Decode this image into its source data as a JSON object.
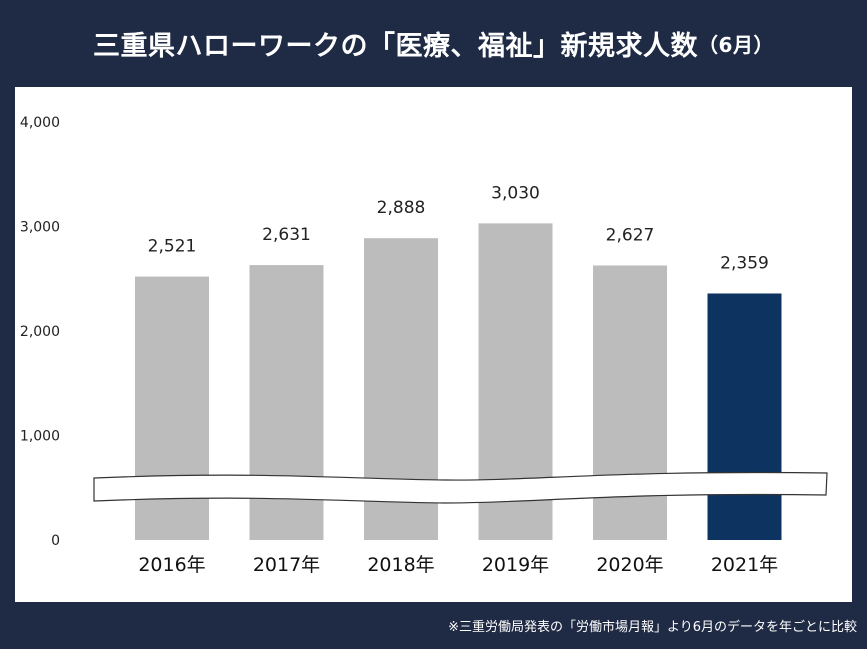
{
  "title": "三重県ハローワークの「医療、福祉」新規求人数",
  "title_suffix": "（6月）",
  "footnote": "※三重労働局発表の「労働市場月報」より6月のデータを年ごとに比較",
  "colors": {
    "background": "#1f2a44",
    "bar": "#bcbcbc",
    "highlight": "#0d3461"
  },
  "chart_data": {
    "type": "bar",
    "categories": [
      "2016年",
      "2017年",
      "2018年",
      "2019年",
      "2020年",
      "2021年"
    ],
    "values": [
      2521,
      2631,
      2888,
      3030,
      2627,
      2359
    ],
    "value_labels": [
      "2,521",
      "2,631",
      "2,888",
      "3,030",
      "2,627",
      "2,359"
    ],
    "highlight_index": 5,
    "yticks": [
      0,
      1000,
      2000,
      3000,
      4000
    ],
    "ytick_labels": [
      "0",
      "1,000",
      "2,000",
      "3,000",
      "4,000"
    ],
    "ylim": [
      0,
      4000
    ],
    "axis_break": true,
    "title": "三重県ハローワークの「医療、福祉」新規求人数（6月）",
    "xlabel": "",
    "ylabel": "",
    "grid": false
  }
}
